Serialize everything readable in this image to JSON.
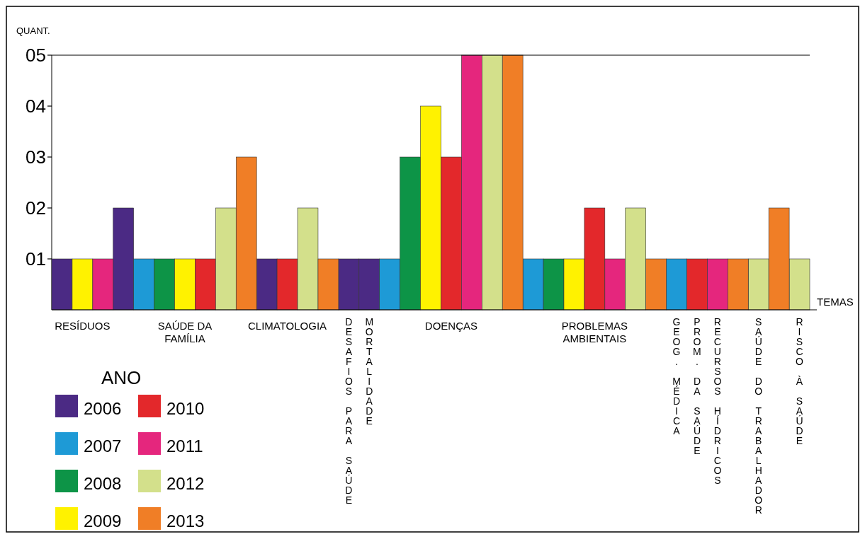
{
  "chart_data": {
    "type": "bar",
    "stacked": true,
    "ylabel": "QUANT.",
    "xlabel": "TEMAS",
    "legend_title": "ANO",
    "legend": "bottom left",
    "categories": [
      null,
      "RESÍDUOS",
      null,
      null,
      null,
      null,
      "SAÚDE DA FAMÍLIA",
      null,
      null,
      null,
      null,
      "CLIMATOLOGIA",
      null,
      null,
      "DESAFIOS PARA SAÚDE",
      "MORTALIDADE",
      null,
      null,
      null,
      "DOENÇAS",
      null,
      null,
      null,
      null,
      null,
      null,
      "PROBLEMAS AMBIENTAIS",
      null,
      null,
      null,
      "GEOG. MÉDICA",
      "PROM. DA SAÚDE",
      "RECURSOS HÍDRICOS",
      null,
      "SAÚDE DO TRABALHADOR",
      null,
      "RISCO À SAÚDE"
    ],
    "series": [
      {
        "name": "2006",
        "color": "#4b2a84",
        "values": [
          1,
          null,
          null,
          2,
          null,
          null,
          null,
          null,
          null,
          null,
          1,
          null,
          null,
          null,
          1,
          1,
          null,
          null,
          null,
          null,
          null,
          null,
          null,
          null,
          null,
          null,
          null,
          null,
          null,
          null,
          null,
          null,
          null,
          null,
          null,
          null,
          null
        ]
      },
      {
        "name": "2007",
        "color": "#1e9ad6",
        "values": [
          null,
          null,
          null,
          null,
          1,
          null,
          null,
          null,
          null,
          null,
          null,
          null,
          null,
          null,
          null,
          null,
          1,
          null,
          null,
          null,
          null,
          null,
          null,
          1,
          null,
          null,
          null,
          null,
          null,
          null,
          1,
          null,
          null,
          null,
          null,
          null,
          null
        ]
      },
      {
        "name": "2008",
        "color": "#0d9447",
        "values": [
          null,
          null,
          null,
          null,
          null,
          1,
          null,
          null,
          null,
          null,
          null,
          null,
          null,
          null,
          null,
          null,
          null,
          3,
          null,
          null,
          null,
          null,
          null,
          null,
          1,
          null,
          null,
          null,
          null,
          null,
          null,
          null,
          null,
          null,
          null,
          null,
          null
        ]
      },
      {
        "name": "2009",
        "color": "#fff200",
        "values": [
          null,
          1,
          null,
          null,
          null,
          null,
          1,
          null,
          null,
          null,
          null,
          null,
          null,
          null,
          null,
          null,
          null,
          null,
          4,
          null,
          null,
          null,
          null,
          null,
          null,
          1,
          null,
          null,
          null,
          null,
          null,
          null,
          null,
          null,
          null,
          null,
          null
        ]
      },
      {
        "name": "2010",
        "color": "#e3282b",
        "values": [
          null,
          null,
          null,
          null,
          null,
          null,
          null,
          1,
          null,
          null,
          null,
          1,
          null,
          null,
          null,
          null,
          null,
          null,
          null,
          3,
          null,
          null,
          null,
          null,
          null,
          null,
          2,
          null,
          null,
          null,
          null,
          1,
          null,
          null,
          null,
          null,
          null
        ]
      },
      {
        "name": "2011",
        "color": "#e5267d",
        "values": [
          null,
          null,
          1,
          null,
          null,
          null,
          null,
          null,
          null,
          null,
          null,
          null,
          null,
          null,
          null,
          null,
          null,
          null,
          null,
          null,
          5,
          null,
          null,
          null,
          null,
          null,
          null,
          1,
          null,
          null,
          null,
          null,
          1,
          null,
          null,
          null,
          null
        ]
      },
      {
        "name": "2012",
        "color": "#d3e08b",
        "values": [
          null,
          null,
          null,
          null,
          null,
          null,
          null,
          null,
          2,
          null,
          null,
          null,
          2,
          null,
          null,
          null,
          null,
          null,
          null,
          null,
          null,
          5,
          null,
          null,
          null,
          null,
          null,
          null,
          2,
          null,
          null,
          null,
          null,
          null,
          1,
          null,
          1
        ]
      },
      {
        "name": "2013",
        "color": "#f07e26",
        "values": [
          null,
          null,
          null,
          null,
          null,
          null,
          null,
          null,
          null,
          3,
          null,
          null,
          null,
          1,
          null,
          null,
          null,
          null,
          null,
          null,
          null,
          null,
          5,
          null,
          null,
          null,
          null,
          null,
          null,
          1,
          null,
          null,
          null,
          1,
          null,
          2,
          null
        ]
      }
    ],
    "ylim": [
      0,
      5
    ],
    "yticks": [
      {
        "value": 1,
        "label": "01"
      },
      {
        "value": 2,
        "label": "02"
      },
      {
        "value": 3,
        "label": "03"
      },
      {
        "value": 4,
        "label": "04"
      },
      {
        "value": 5,
        "label": "05"
      }
    ]
  }
}
